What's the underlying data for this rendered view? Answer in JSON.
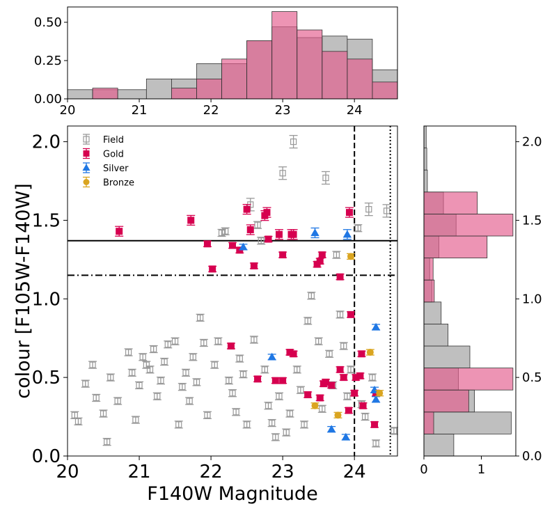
{
  "chart_data": [
    {
      "id": "top_histogram",
      "type": "histogram",
      "xlim": [
        20,
        24.6
      ],
      "ylim": [
        0,
        0.6
      ],
      "x_ticks": [
        "20",
        "21",
        "22",
        "23",
        "24"
      ],
      "y_ticks": [
        "0.00",
        "0.25",
        "0.50"
      ],
      "bin_edges": [
        20.0,
        20.35,
        20.7,
        21.1,
        21.45,
        21.8,
        22.15,
        22.5,
        22.85,
        23.2,
        23.55,
        23.9,
        24.25,
        24.6
      ],
      "series": [
        {
          "name": "Field",
          "color": "#a9a9a9",
          "values": [
            0.06,
            0.06,
            0.06,
            0.13,
            0.13,
            0.23,
            0.23,
            0.38,
            0.47,
            0.4,
            0.41,
            0.39,
            0.19
          ]
        },
        {
          "name": "Gold",
          "color": "#e45a8c",
          "values": [
            0.0,
            0.07,
            0.0,
            0.0,
            0.07,
            0.13,
            0.26,
            0.38,
            0.57,
            0.45,
            0.31,
            0.26,
            0.11
          ]
        }
      ]
    },
    {
      "id": "main_scatter",
      "type": "scatter",
      "xlabel": "F140W Magnitude",
      "ylabel": "colour [F105W-F140W]",
      "xlim": [
        20,
        24.6
      ],
      "ylim": [
        0,
        2.1
      ],
      "x_ticks": [
        "20",
        "21",
        "22",
        "23",
        "24"
      ],
      "y_ticks": [
        "0.0",
        "0.5",
        "1.0",
        "1.5",
        "2.0"
      ],
      "hlines": [
        {
          "y": 1.37,
          "style": "solid"
        },
        {
          "y": 1.15,
          "style": "dashdot"
        }
      ],
      "vlines": [
        {
          "x": 24.0,
          "style": "dashed"
        },
        {
          "x": 24.5,
          "style": "dotted"
        }
      ],
      "legend": {
        "position": "top-left",
        "entries": [
          "Field",
          "Gold",
          "Silver",
          "Bronze"
        ]
      },
      "series": [
        {
          "name": "Field",
          "marker": "open-square",
          "color": "#999999",
          "points": [
            [
              20.1,
              0.26
            ],
            [
              20.15,
              0.22
            ],
            [
              20.25,
              0.46
            ],
            [
              20.35,
              0.58
            ],
            [
              20.4,
              0.37
            ],
            [
              20.5,
              0.27
            ],
            [
              20.55,
              0.09
            ],
            [
              20.6,
              0.5
            ],
            [
              20.7,
              0.35
            ],
            [
              20.85,
              0.66
            ],
            [
              20.9,
              0.53
            ],
            [
              20.95,
              0.23
            ],
            [
              21.0,
              0.45
            ],
            [
              21.05,
              0.63
            ],
            [
              21.1,
              0.58
            ],
            [
              21.15,
              0.55
            ],
            [
              21.2,
              0.68
            ],
            [
              21.25,
              0.38
            ],
            [
              21.3,
              0.48
            ],
            [
              21.35,
              0.6
            ],
            [
              21.4,
              0.71
            ],
            [
              21.5,
              0.73
            ],
            [
              21.55,
              0.2
            ],
            [
              21.6,
              0.44
            ],
            [
              21.65,
              0.53
            ],
            [
              21.7,
              0.35
            ],
            [
              21.75,
              0.63
            ],
            [
              21.8,
              0.47
            ],
            [
              21.85,
              0.88
            ],
            [
              21.9,
              0.72
            ],
            [
              21.95,
              0.26
            ],
            [
              22.05,
              0.58
            ],
            [
              22.1,
              0.73
            ],
            [
              22.15,
              1.42
            ],
            [
              22.2,
              1.43
            ],
            [
              22.25,
              0.48
            ],
            [
              22.3,
              0.4
            ],
            [
              22.35,
              0.28
            ],
            [
              22.4,
              0.62
            ],
            [
              22.45,
              0.52
            ],
            [
              22.5,
              0.2
            ],
            [
              22.55,
              1.6
            ],
            [
              22.6,
              0.74
            ],
            [
              22.65,
              1.47
            ],
            [
              22.7,
              1.37
            ],
            [
              22.75,
              0.55
            ],
            [
              22.8,
              0.32
            ],
            [
              22.85,
              0.21
            ],
            [
              22.9,
              0.12
            ],
            [
              22.95,
              0.38
            ],
            [
              23.0,
              1.8
            ],
            [
              23.05,
              0.15
            ],
            [
              23.1,
              0.27
            ],
            [
              23.15,
              2.0
            ],
            [
              23.2,
              0.55
            ],
            [
              23.25,
              0.42
            ],
            [
              23.3,
              0.2
            ],
            [
              23.35,
              0.86
            ],
            [
              23.4,
              1.02
            ],
            [
              23.5,
              0.73
            ],
            [
              23.55,
              0.3
            ],
            [
              23.6,
              1.77
            ],
            [
              23.65,
              0.65
            ],
            [
              23.7,
              0.45
            ],
            [
              23.75,
              1.28
            ],
            [
              23.8,
              0.9
            ],
            [
              23.85,
              0.7
            ],
            [
              23.9,
              0.38
            ],
            [
              23.95,
              0.55
            ],
            [
              24.05,
              1.45
            ],
            [
              24.1,
              0.33
            ],
            [
              24.15,
              0.25
            ],
            [
              24.2,
              1.57
            ],
            [
              24.25,
              0.5
            ],
            [
              24.3,
              0.08
            ],
            [
              24.45,
              1.56
            ],
            [
              24.55,
              0.16
            ]
          ]
        },
        {
          "name": "Gold",
          "marker": "filled-square",
          "color": "#d6004f",
          "points": [
            [
              20.72,
              1.43
            ],
            [
              21.72,
              1.5
            ],
            [
              21.95,
              1.35
            ],
            [
              22.02,
              1.19
            ],
            [
              22.3,
              1.34
            ],
            [
              22.4,
              1.31
            ],
            [
              22.5,
              1.57
            ],
            [
              22.55,
              1.44
            ],
            [
              22.6,
              1.21
            ],
            [
              22.75,
              1.53
            ],
            [
              22.78,
              1.55
            ],
            [
              22.8,
              1.38
            ],
            [
              22.95,
              1.41
            ],
            [
              23.0,
              1.28
            ],
            [
              23.12,
              1.41
            ],
            [
              23.15,
              1.41
            ],
            [
              23.48,
              1.22
            ],
            [
              23.52,
              1.24
            ],
            [
              23.55,
              1.28
            ],
            [
              23.8,
              1.14
            ],
            [
              23.93,
              1.55
            ],
            [
              23.95,
              0.9
            ],
            [
              22.28,
              0.7
            ],
            [
              22.65,
              0.49
            ],
            [
              22.9,
              0.48
            ],
            [
              23.0,
              0.48
            ],
            [
              23.1,
              0.66
            ],
            [
              23.15,
              0.65
            ],
            [
              23.35,
              0.39
            ],
            [
              23.52,
              0.37
            ],
            [
              23.57,
              0.46
            ],
            [
              23.6,
              0.47
            ],
            [
              23.68,
              0.45
            ],
            [
              23.8,
              0.55
            ],
            [
              23.85,
              0.5
            ],
            [
              23.92,
              0.29
            ],
            [
              24.0,
              0.4
            ],
            [
              24.02,
              0.5
            ],
            [
              24.08,
              0.51
            ],
            [
              24.1,
              0.65
            ],
            [
              24.12,
              0.32
            ],
            [
              24.28,
              0.2
            ],
            [
              24.3,
              0.4
            ]
          ]
        },
        {
          "name": "Silver",
          "marker": "triangle",
          "color": "#1f77e4",
          "points": [
            [
              22.45,
              1.33
            ],
            [
              23.45,
              1.42
            ],
            [
              23.9,
              1.41
            ],
            [
              22.85,
              0.63
            ],
            [
              24.3,
              0.82
            ],
            [
              24.28,
              0.42
            ],
            [
              24.3,
              0.36
            ],
            [
              23.68,
              0.17
            ],
            [
              23.88,
              0.12
            ]
          ]
        },
        {
          "name": "Bronze",
          "marker": "circle",
          "color": "#daa520",
          "points": [
            [
              23.95,
              1.27
            ],
            [
              24.22,
              0.66
            ],
            [
              23.45,
              0.32
            ],
            [
              23.77,
              0.26
            ],
            [
              24.35,
              0.4
            ]
          ]
        }
      ]
    },
    {
      "id": "right_histogram",
      "type": "histogram",
      "orientation": "horizontal",
      "xlim": [
        0,
        1.6
      ],
      "ylim": [
        0,
        2.1
      ],
      "x_ticks": [
        "0",
        "1"
      ],
      "y_ticks": [
        "0.0",
        "0.5",
        "1.0",
        "1.5",
        "2.0"
      ],
      "bin_edges": [
        0.0,
        0.14,
        0.28,
        0.42,
        0.56,
        0.7,
        0.84,
        0.98,
        1.12,
        1.26,
        1.4,
        1.54,
        1.68,
        1.82,
        1.96,
        2.1
      ],
      "series": [
        {
          "name": "Field",
          "color": "#a9a9a9",
          "values": [
            0.52,
            1.52,
            0.88,
            0.6,
            0.8,
            0.42,
            0.3,
            0.14,
            0.1,
            0.26,
            0.56,
            0.34,
            0.06,
            0.05,
            0.04
          ]
        },
        {
          "name": "Gold",
          "color": "#e45a8c",
          "values": [
            0.0,
            0.17,
            0.78,
            1.55,
            0.0,
            0.0,
            0.0,
            0.18,
            0.16,
            1.1,
            1.55,
            0.93,
            0.0,
            0.0,
            0.0
          ]
        }
      ]
    }
  ]
}
